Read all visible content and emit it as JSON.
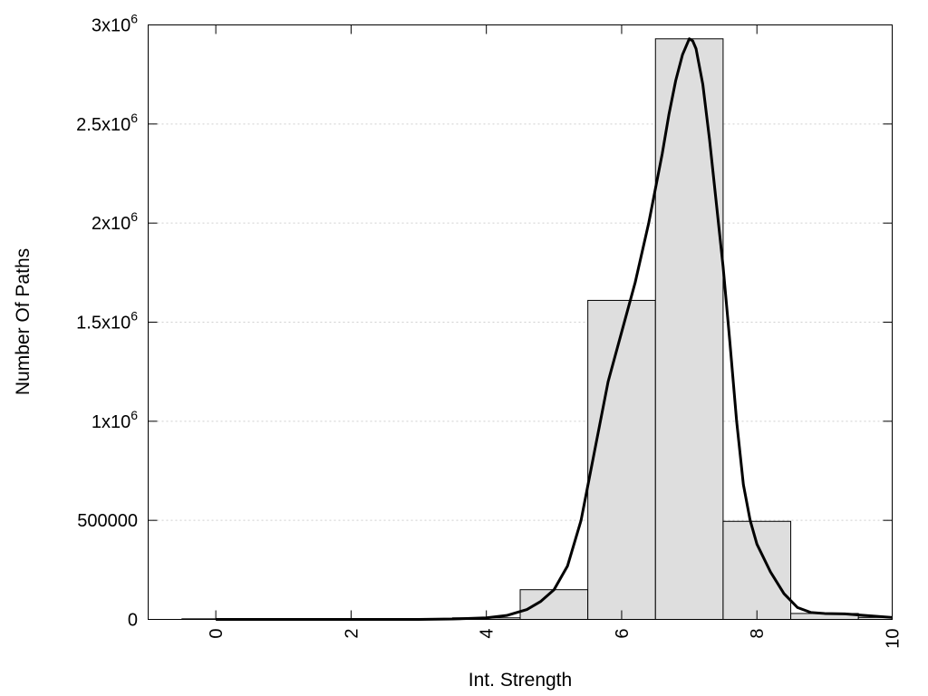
{
  "chart_data": {
    "type": "bar",
    "xlabel": "Int. Strength",
    "ylabel": "Number Of Paths",
    "xlim": [
      -1,
      10
    ],
    "ylim": [
      0,
      3000000
    ],
    "grid": "horizontal dotted",
    "x_ticks": [
      {
        "value": 0,
        "label": "0"
      },
      {
        "value": 2,
        "label": "2"
      },
      {
        "value": 4,
        "label": "4"
      },
      {
        "value": 6,
        "label": "6"
      },
      {
        "value": 8,
        "label": "8"
      },
      {
        "value": 10,
        "label": "10"
      }
    ],
    "y_ticks": [
      {
        "value": 0,
        "base": "0",
        "exp": ""
      },
      {
        "value": 500000,
        "base": "500000",
        "exp": ""
      },
      {
        "value": 1000000,
        "base": "1x10",
        "exp": "6"
      },
      {
        "value": 1500000,
        "base": "1.5x10",
        "exp": "6"
      },
      {
        "value": 2000000,
        "base": "2x10",
        "exp": "6"
      },
      {
        "value": 2500000,
        "base": "2.5x10",
        "exp": "6"
      },
      {
        "value": 3000000,
        "base": "3x10",
        "exp": "6"
      }
    ],
    "bin_width": 1,
    "bars": [
      {
        "x": 0,
        "value": 3000
      },
      {
        "x": 1,
        "value": 3000
      },
      {
        "x": 2,
        "value": 3000
      },
      {
        "x": 3,
        "value": 3000
      },
      {
        "x": 4,
        "value": 8000
      },
      {
        "x": 5,
        "value": 150000
      },
      {
        "x": 6,
        "value": 1610000
      },
      {
        "x": 7,
        "value": 2930000
      },
      {
        "x": 8,
        "value": 495000
      },
      {
        "x": 9,
        "value": 30000
      },
      {
        "x": 10,
        "value": 10000
      }
    ],
    "curve": {
      "x": [
        0,
        1,
        2,
        3,
        3.5,
        4,
        4.3,
        4.6,
        4.8,
        5.0,
        5.2,
        5.4,
        5.6,
        5.8,
        6.0,
        6.2,
        6.4,
        6.6,
        6.7,
        6.8,
        6.9,
        7.0,
        7.05,
        7.1,
        7.2,
        7.3,
        7.4,
        7.5,
        7.6,
        7.7,
        7.8,
        7.9,
        8.0,
        8.2,
        8.4,
        8.6,
        8.8,
        9.0,
        9.3,
        9.6,
        10.0
      ],
      "y": [
        0,
        0,
        0,
        0,
        2000,
        8000,
        20000,
        50000,
        90000,
        150000,
        270000,
        500000,
        850000,
        1200000,
        1450000,
        1700000,
        2000000,
        2350000,
        2550000,
        2720000,
        2850000,
        2930000,
        2920000,
        2880000,
        2700000,
        2420000,
        2100000,
        1780000,
        1400000,
        1000000,
        680000,
        500000,
        380000,
        240000,
        130000,
        60000,
        35000,
        30000,
        28000,
        20000,
        10000
      ]
    }
  }
}
